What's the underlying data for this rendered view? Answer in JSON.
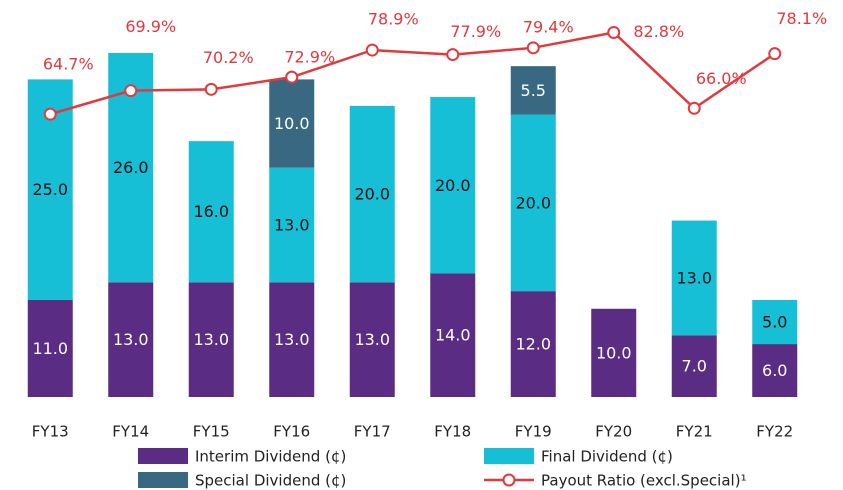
{
  "chart_data": {
    "type": "bar",
    "categories": [
      "FY13",
      "FY14",
      "FY15",
      "FY16",
      "FY17",
      "FY18",
      "FY19",
      "FY20",
      "FY21",
      "FY22"
    ],
    "ylim": [
      0,
      45
    ],
    "y2lim": [
      2,
      90
    ],
    "stacked": true,
    "series": [
      {
        "name": "Interim Dividend (¢)",
        "color": "#5b2c83",
        "values": [
          11,
          13,
          13,
          13,
          13,
          14,
          12,
          10,
          7,
          6
        ],
        "value_labels": [
          "11.0",
          "13.0",
          "13.0",
          "13.0",
          "13.0",
          "14.0",
          "12.0",
          "10.0",
          "7.0",
          "6.0"
        ]
      },
      {
        "name": "Final Dividend (¢)",
        "color": "#17bfd6",
        "values": [
          25,
          26,
          16,
          13,
          20,
          20,
          20,
          null,
          13,
          5
        ],
        "value_labels": [
          "25.0",
          "26.0",
          "16.0",
          "13.0",
          "20.0",
          "20.0",
          "20.0",
          null,
          "13.0",
          "5.0"
        ]
      },
      {
        "name": "Special Dividend (¢)",
        "color": "#386882",
        "values": [
          null,
          null,
          null,
          10,
          null,
          null,
          5.5,
          null,
          null,
          null
        ],
        "value_labels": [
          null,
          null,
          null,
          "10.0",
          null,
          null,
          "5.5",
          null,
          null,
          null
        ]
      },
      {
        "name": "Payout Ratio (excl.Special)¹",
        "color": "#e03a3e",
        "type": "line",
        "axis": "y2",
        "values": [
          64.7,
          69.9,
          70.2,
          72.9,
          78.9,
          77.9,
          79.4,
          82.8,
          66.0,
          78.1
        ],
        "value_labels": [
          "64.7%",
          "69.9%",
          "70.2%",
          "72.9%",
          "78.9%",
          "77.9%",
          "79.4%",
          "82.8%",
          "66.0%",
          "78.1%"
        ]
      }
    ]
  }
}
